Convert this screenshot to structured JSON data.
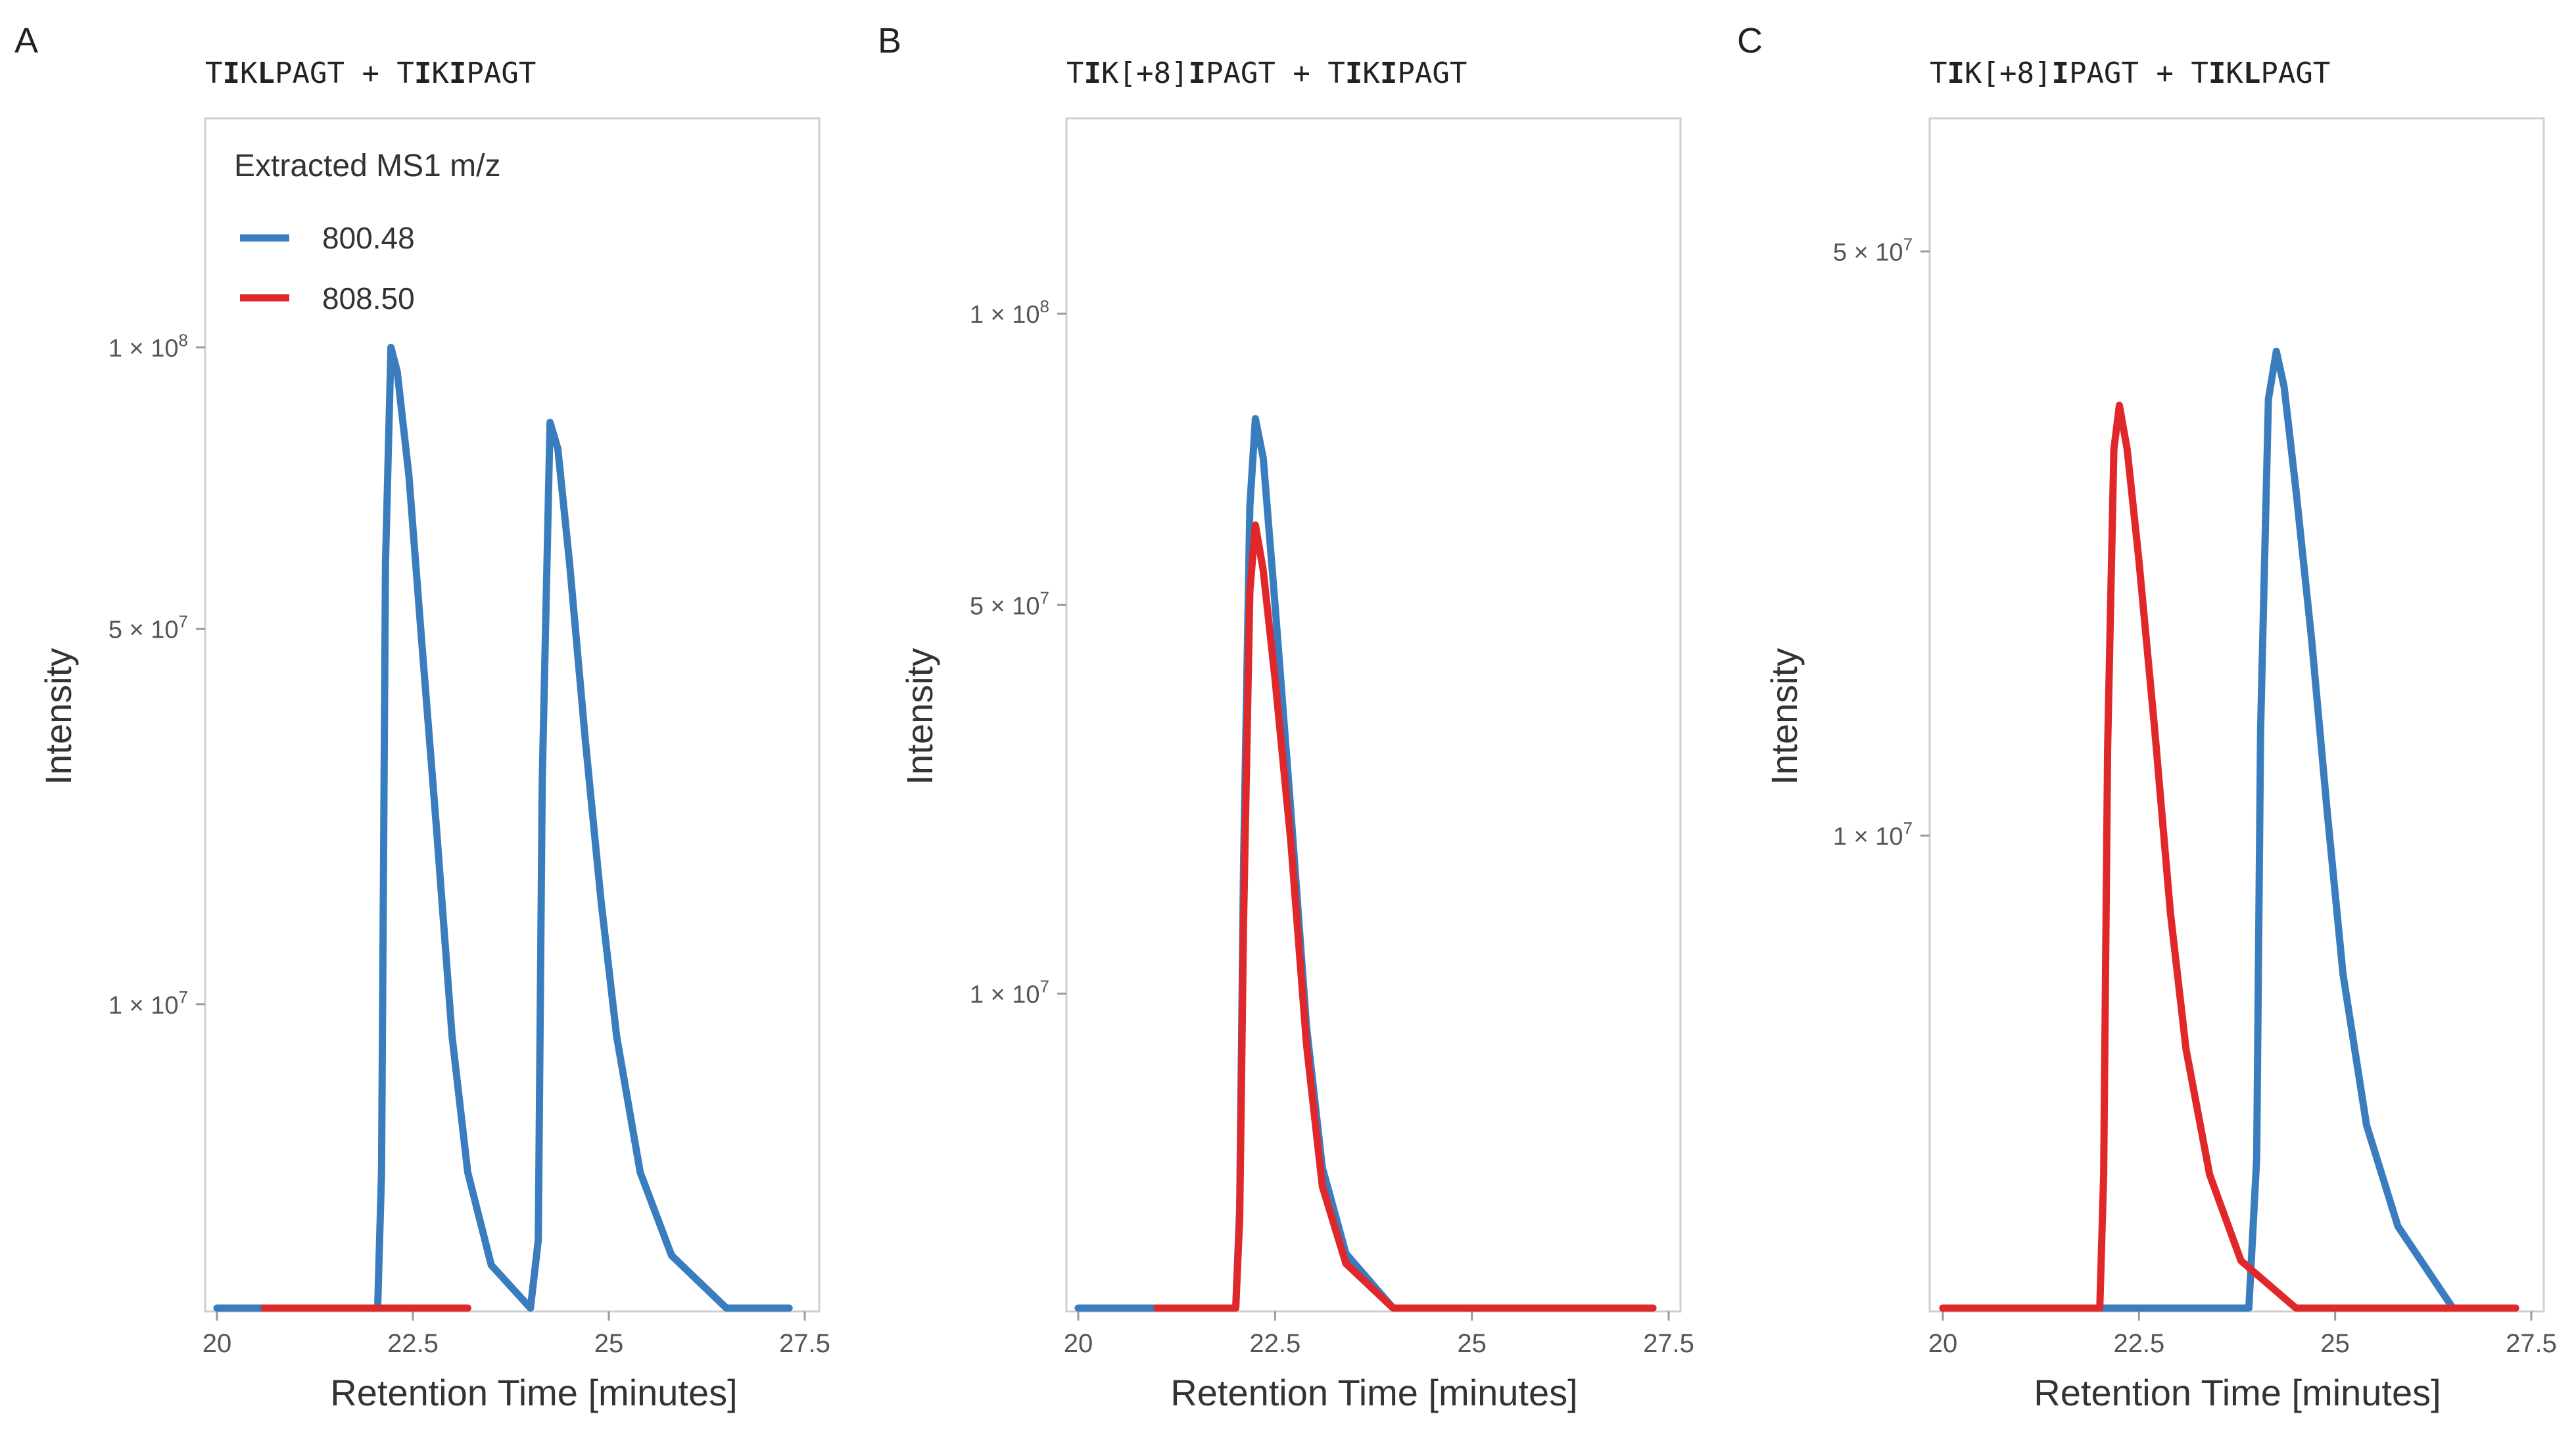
{
  "legend": {
    "title": "Extracted MS1 m/z",
    "entries": [
      {
        "label": "800.48",
        "color": "#3a7dbf"
      },
      {
        "label": "808.50",
        "color": "#e0282a"
      }
    ]
  },
  "chart_data": [
    {
      "panel": "A",
      "type": "line",
      "title": "TIKLPAGT + TIKIPAGT",
      "title_segments": [
        {
          "text": "T",
          "bold": false
        },
        {
          "text": "I",
          "bold": true
        },
        {
          "text": "K",
          "bold": false
        },
        {
          "text": "L",
          "bold": true
        },
        {
          "text": "PAGT + T",
          "bold": false
        },
        {
          "text": "I",
          "bold": true
        },
        {
          "text": "K",
          "bold": false
        },
        {
          "text": "I",
          "bold": true
        },
        {
          "text": "PAGT",
          "bold": false
        }
      ],
      "xlabel": "Retention Time [minutes]",
      "ylabel": "Intensity",
      "xlim": [
        20,
        27.5
      ],
      "ylim": [
        0,
        150000000.0
      ],
      "yscale": "sqrt",
      "xticks": [
        20,
        22.5,
        25,
        27.5
      ],
      "xtick_labels": [
        "20",
        "22.5",
        "25",
        "27.5"
      ],
      "yticks": [
        {
          "value": 10000000.0,
          "mantissa": "1",
          "exponent": "7"
        },
        {
          "value": 50000000.0,
          "mantissa": "5",
          "exponent": "7"
        },
        {
          "value": 100000000.0,
          "mantissa": "1",
          "exponent": "8"
        }
      ],
      "series": [
        {
          "name": "800.48",
          "color": "#3a7dbf",
          "points": [
            [
              20,
              0
            ],
            [
              21.5,
              0
            ],
            [
              22.05,
              0
            ],
            [
              22.1,
              2000000.0
            ],
            [
              22.15,
              60000000.0
            ],
            [
              22.22,
              100000000.0
            ],
            [
              22.3,
              95000000.0
            ],
            [
              22.45,
              75000000.0
            ],
            [
              22.6,
              50000000.0
            ],
            [
              22.8,
              25000000.0
            ],
            [
              23.0,
              8000000.0
            ],
            [
              23.2,
              2000000.0
            ],
            [
              23.5,
              200000.0
            ],
            [
              24.0,
              0
            ],
            [
              24.1,
              500000.0
            ],
            [
              24.15,
              30000000.0
            ],
            [
              24.25,
              85000000.0
            ],
            [
              24.35,
              80000000.0
            ],
            [
              24.5,
              60000000.0
            ],
            [
              24.7,
              35000000.0
            ],
            [
              24.9,
              18000000.0
            ],
            [
              25.1,
              8000000.0
            ],
            [
              25.4,
              2000000.0
            ],
            [
              25.8,
              300000.0
            ],
            [
              26.5,
              0
            ],
            [
              27.3,
              0
            ]
          ]
        },
        {
          "name": "808.50",
          "color": "#e0282a",
          "points": [
            [
              20.6,
              0
            ],
            [
              23.2,
              0
            ]
          ]
        }
      ]
    },
    {
      "panel": "B",
      "type": "line",
      "title": "TIK[+8]IPAGT + TIKIPAGT",
      "title_segments": [
        {
          "text": "T",
          "bold": false
        },
        {
          "text": "I",
          "bold": true
        },
        {
          "text": "K[+8]",
          "bold": false
        },
        {
          "text": "I",
          "bold": true
        },
        {
          "text": "PAGT + T",
          "bold": false
        },
        {
          "text": "I",
          "bold": true
        },
        {
          "text": "K",
          "bold": false
        },
        {
          "text": "I",
          "bold": true
        },
        {
          "text": "PAGT",
          "bold": false
        }
      ],
      "xlabel": "Retention Time [minutes]",
      "ylabel": "Intensity",
      "xlim": [
        20,
        27.5
      ],
      "ylim": [
        0,
        140000000.0
      ],
      "yscale": "sqrt",
      "xticks": [
        20,
        22.5,
        25,
        27.5
      ],
      "xtick_labels": [
        "20",
        "22.5",
        "25",
        "27.5"
      ],
      "yticks": [
        {
          "value": 10000000.0,
          "mantissa": "1",
          "exponent": "7"
        },
        {
          "value": 50000000.0,
          "mantissa": "5",
          "exponent": "7"
        },
        {
          "value": 100000000.0,
          "mantissa": "1",
          "exponent": "8"
        }
      ],
      "series": [
        {
          "name": "800.48",
          "color": "#3a7dbf",
          "points": [
            [
              20,
              0
            ],
            [
              22.0,
              0
            ],
            [
              22.05,
              1000000.0
            ],
            [
              22.1,
              20000000.0
            ],
            [
              22.18,
              65000000.0
            ],
            [
              22.25,
              80000000.0
            ],
            [
              22.35,
              73000000.0
            ],
            [
              22.5,
              50000000.0
            ],
            [
              22.7,
              25000000.0
            ],
            [
              22.9,
              8000000.0
            ],
            [
              23.1,
              2000000.0
            ],
            [
              23.4,
              300000.0
            ],
            [
              24.0,
              0
            ],
            [
              27.3,
              0
            ]
          ]
        },
        {
          "name": "808.50",
          "color": "#e0282a",
          "points": [
            [
              21.0,
              0
            ],
            [
              22.0,
              0
            ],
            [
              22.05,
              800000.0
            ],
            [
              22.1,
              15000000.0
            ],
            [
              22.18,
              52000000.0
            ],
            [
              22.25,
              62000000.0
            ],
            [
              22.35,
              55000000.0
            ],
            [
              22.5,
              40000000.0
            ],
            [
              22.7,
              22000000.0
            ],
            [
              22.9,
              7000000.0
            ],
            [
              23.1,
              1500000.0
            ],
            [
              23.4,
              200000.0
            ],
            [
              24.0,
              0
            ],
            [
              27.3,
              0
            ]
          ]
        }
      ]
    },
    {
      "panel": "C",
      "type": "line",
      "title": "TIK[+8]IPAGT + TIKLPAGT",
      "title_segments": [
        {
          "text": "T",
          "bold": false
        },
        {
          "text": "I",
          "bold": true
        },
        {
          "text": "K[+8]",
          "bold": false
        },
        {
          "text": "I",
          "bold": true
        },
        {
          "text": "PAGT + T",
          "bold": false
        },
        {
          "text": "I",
          "bold": true
        },
        {
          "text": "K",
          "bold": false
        },
        {
          "text": "L",
          "bold": true
        },
        {
          "text": "PAGT",
          "bold": false
        }
      ],
      "xlabel": "Retention Time [minutes]",
      "ylabel": "Intensity",
      "xlim": [
        20,
        27.5
      ],
      "ylim": [
        0,
        62000000.0
      ],
      "yscale": "sqrt",
      "xticks": [
        20,
        22.5,
        25,
        27.5
      ],
      "xtick_labels": [
        "20",
        "22.5",
        "25",
        "27.5"
      ],
      "yticks": [
        {
          "value": 10000000.0,
          "mantissa": "1",
          "exponent": "7"
        },
        {
          "value": 50000000.0,
          "mantissa": "5",
          "exponent": "7"
        }
      ],
      "series": [
        {
          "name": "800.48",
          "color": "#3a7dbf",
          "points": [
            [
              20,
              0
            ],
            [
              23.9,
              0
            ],
            [
              24.0,
              1000000.0
            ],
            [
              24.05,
              15000000.0
            ],
            [
              24.15,
              37000000.0
            ],
            [
              24.25,
              41000000.0
            ],
            [
              24.35,
              38000000.0
            ],
            [
              24.5,
              30000000.0
            ],
            [
              24.7,
              20000000.0
            ],
            [
              24.9,
              11000000.0
            ],
            [
              25.1,
              5000000.0
            ],
            [
              25.4,
              1500000.0
            ],
            [
              25.8,
              300000.0
            ],
            [
              26.5,
              0
            ],
            [
              27.3,
              0
            ]
          ]
        },
        {
          "name": "808.50",
          "color": "#e0282a",
          "points": [
            [
              20,
              0
            ],
            [
              22.0,
              0
            ],
            [
              22.05,
              800000.0
            ],
            [
              22.1,
              14000000.0
            ],
            [
              22.18,
              33000000.0
            ],
            [
              22.25,
              36500000.0
            ],
            [
              22.35,
              33000000.0
            ],
            [
              22.5,
              25000000.0
            ],
            [
              22.7,
              15000000.0
            ],
            [
              22.9,
              7000000.0
            ],
            [
              23.1,
              3000000.0
            ],
            [
              23.4,
              800000.0
            ],
            [
              23.8,
              100000.0
            ],
            [
              24.5,
              0
            ],
            [
              27.3,
              0
            ]
          ]
        }
      ]
    }
  ]
}
